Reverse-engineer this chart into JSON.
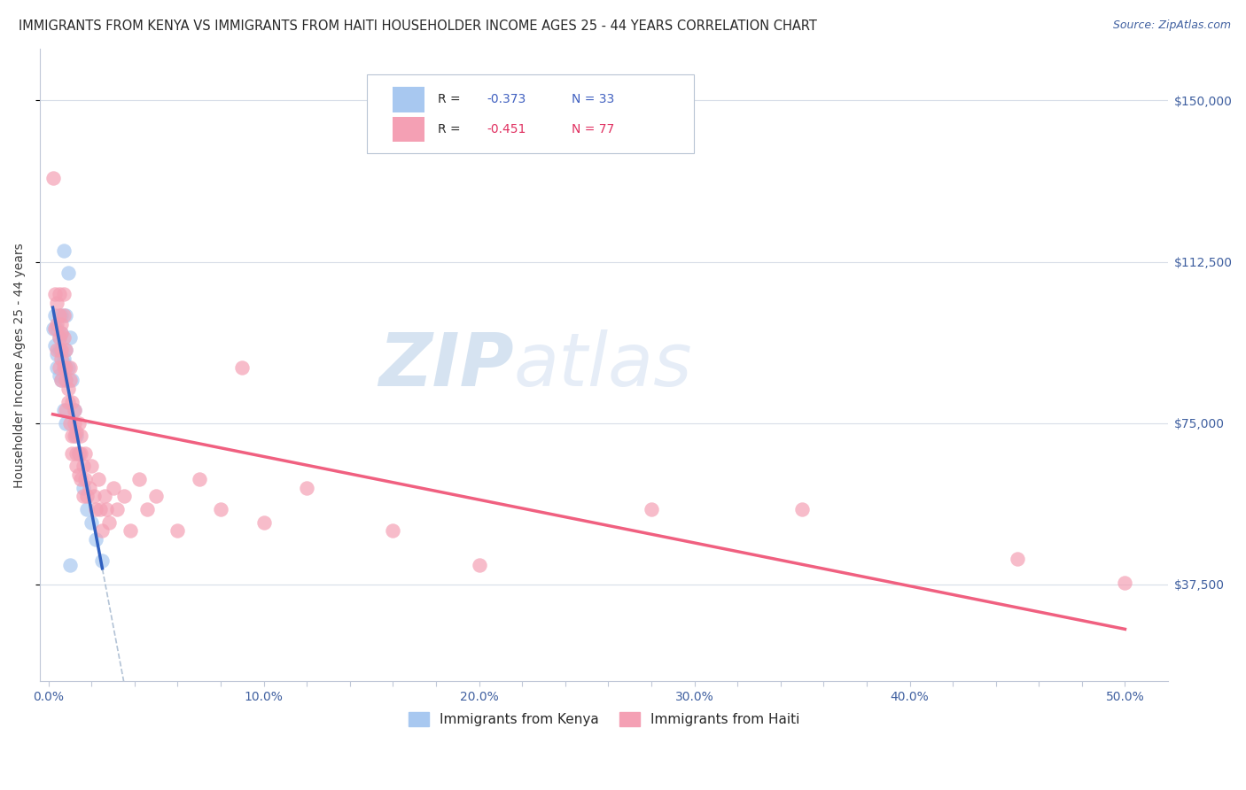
{
  "title": "IMMIGRANTS FROM KENYA VS IMMIGRANTS FROM HAITI HOUSEHOLDER INCOME AGES 25 - 44 YEARS CORRELATION CHART",
  "source": "Source: ZipAtlas.com",
  "ylabel": "Householder Income Ages 25 - 44 years",
  "xlabel_ticks": [
    "0.0%",
    "",
    "",
    "",
    "",
    "10.0%",
    "",
    "",
    "",
    "",
    "20.0%",
    "",
    "",
    "",
    "",
    "30.0%",
    "",
    "",
    "",
    "",
    "40.0%",
    "",
    "",
    "",
    "",
    "50.0%"
  ],
  "xlabel_vals": [
    0.0,
    0.02,
    0.04,
    0.06,
    0.08,
    0.1,
    0.12,
    0.14,
    0.16,
    0.18,
    0.2,
    0.22,
    0.24,
    0.26,
    0.28,
    0.3,
    0.32,
    0.34,
    0.36,
    0.38,
    0.4,
    0.42,
    0.44,
    0.46,
    0.48,
    0.5
  ],
  "ylabel_ticks": [
    "$37,500",
    "$75,000",
    "$112,500",
    "$150,000"
  ],
  "ylabel_vals": [
    37500,
    75000,
    112500,
    150000
  ],
  "ylim": [
    15000,
    162000
  ],
  "xlim": [
    -0.004,
    0.52
  ],
  "kenya_R": -0.373,
  "kenya_N": 33,
  "haiti_R": -0.451,
  "haiti_N": 77,
  "kenya_color": "#a8c8f0",
  "haiti_color": "#f4a0b4",
  "kenya_line_color": "#3060c0",
  "haiti_line_color": "#f06080",
  "kenya_scatter": [
    [
      0.002,
      97000
    ],
    [
      0.003,
      100000
    ],
    [
      0.003,
      93000
    ],
    [
      0.004,
      97000
    ],
    [
      0.004,
      91000
    ],
    [
      0.004,
      88000
    ],
    [
      0.005,
      95000
    ],
    [
      0.005,
      92000
    ],
    [
      0.005,
      86000
    ],
    [
      0.006,
      100000
    ],
    [
      0.006,
      96000
    ],
    [
      0.006,
      85000
    ],
    [
      0.007,
      90000
    ],
    [
      0.007,
      78000
    ],
    [
      0.007,
      89000
    ],
    [
      0.007,
      115000
    ],
    [
      0.008,
      85000
    ],
    [
      0.008,
      92000
    ],
    [
      0.008,
      100000
    ],
    [
      0.008,
      75000
    ],
    [
      0.009,
      88000
    ],
    [
      0.009,
      110000
    ],
    [
      0.01,
      95000
    ],
    [
      0.011,
      85000
    ],
    [
      0.012,
      78000
    ],
    [
      0.013,
      72000
    ],
    [
      0.014,
      68000
    ],
    [
      0.016,
      60000
    ],
    [
      0.018,
      55000
    ],
    [
      0.02,
      52000
    ],
    [
      0.022,
      48000
    ],
    [
      0.025,
      43000
    ],
    [
      0.01,
      42000
    ]
  ],
  "haiti_scatter": [
    [
      0.002,
      132000
    ],
    [
      0.003,
      105000
    ],
    [
      0.003,
      97000
    ],
    [
      0.004,
      103000
    ],
    [
      0.004,
      92000
    ],
    [
      0.004,
      98000
    ],
    [
      0.005,
      105000
    ],
    [
      0.005,
      95000
    ],
    [
      0.005,
      100000
    ],
    [
      0.005,
      88000
    ],
    [
      0.006,
      96000
    ],
    [
      0.006,
      92000
    ],
    [
      0.006,
      98000
    ],
    [
      0.006,
      90000
    ],
    [
      0.006,
      85000
    ],
    [
      0.007,
      105000
    ],
    [
      0.007,
      95000
    ],
    [
      0.007,
      100000
    ],
    [
      0.007,
      88000
    ],
    [
      0.008,
      92000
    ],
    [
      0.008,
      85000
    ],
    [
      0.008,
      78000
    ],
    [
      0.008,
      88000
    ],
    [
      0.009,
      80000
    ],
    [
      0.009,
      83000
    ],
    [
      0.01,
      88000
    ],
    [
      0.01,
      75000
    ],
    [
      0.01,
      85000
    ],
    [
      0.011,
      72000
    ],
    [
      0.011,
      80000
    ],
    [
      0.011,
      68000
    ],
    [
      0.012,
      78000
    ],
    [
      0.012,
      72000
    ],
    [
      0.012,
      75000
    ],
    [
      0.013,
      65000
    ],
    [
      0.013,
      73000
    ],
    [
      0.013,
      68000
    ],
    [
      0.014,
      75000
    ],
    [
      0.014,
      63000
    ],
    [
      0.014,
      68000
    ],
    [
      0.015,
      72000
    ],
    [
      0.015,
      62000
    ],
    [
      0.015,
      68000
    ],
    [
      0.016,
      65000
    ],
    [
      0.016,
      58000
    ],
    [
      0.017,
      62000
    ],
    [
      0.017,
      68000
    ],
    [
      0.018,
      58000
    ],
    [
      0.019,
      60000
    ],
    [
      0.02,
      65000
    ],
    [
      0.021,
      58000
    ],
    [
      0.022,
      55000
    ],
    [
      0.023,
      62000
    ],
    [
      0.024,
      55000
    ],
    [
      0.025,
      50000
    ],
    [
      0.026,
      58000
    ],
    [
      0.027,
      55000
    ],
    [
      0.028,
      52000
    ],
    [
      0.03,
      60000
    ],
    [
      0.032,
      55000
    ],
    [
      0.035,
      58000
    ],
    [
      0.038,
      50000
    ],
    [
      0.042,
      62000
    ],
    [
      0.046,
      55000
    ],
    [
      0.05,
      58000
    ],
    [
      0.06,
      50000
    ],
    [
      0.07,
      62000
    ],
    [
      0.08,
      55000
    ],
    [
      0.09,
      88000
    ],
    [
      0.1,
      52000
    ],
    [
      0.12,
      60000
    ],
    [
      0.16,
      50000
    ],
    [
      0.2,
      42000
    ],
    [
      0.28,
      55000
    ],
    [
      0.35,
      55000
    ],
    [
      0.45,
      43500
    ],
    [
      0.5,
      38000
    ]
  ],
  "background_color": "#ffffff",
  "grid_color": "#d8dee8",
  "watermark_text": "ZIPatlas",
  "watermark_color": "#ccd8ee"
}
